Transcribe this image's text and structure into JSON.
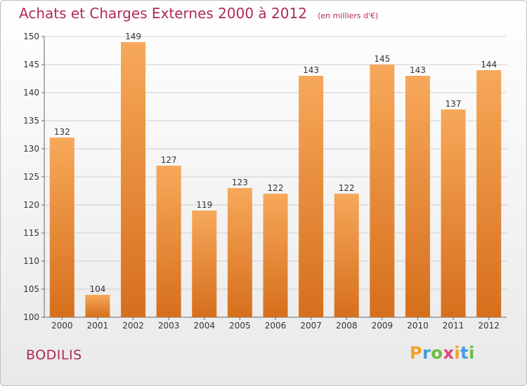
{
  "header": {
    "title": "Achats et Charges Externes 2000 à 2012",
    "subtitle": "(en milliers d'€)"
  },
  "footer": {
    "location": "BODILIS",
    "brand": "Proxiti"
  },
  "colors": {
    "title": "#b12a57",
    "bar_top": "#f7a85a",
    "bar_bottom": "#d66f1c",
    "grid": "#cfcfcf",
    "axis": "#666666"
  },
  "chart_data": {
    "type": "bar",
    "title": "Achats et Charges Externes 2000 à 2012",
    "subtitle": "(en milliers d'€)",
    "xlabel": "",
    "ylabel": "",
    "categories": [
      "2000",
      "2001",
      "2002",
      "2003",
      "2004",
      "2005",
      "2006",
      "2007",
      "2008",
      "2009",
      "2010",
      "2011",
      "2012"
    ],
    "values": [
      132,
      104,
      149,
      127,
      119,
      123,
      122,
      143,
      122,
      145,
      143,
      137,
      144
    ],
    "ylim": [
      100,
      150
    ],
    "yticks": [
      100,
      105,
      110,
      115,
      120,
      125,
      130,
      135,
      140,
      145,
      150
    ],
    "grid": true,
    "legend": "none"
  }
}
